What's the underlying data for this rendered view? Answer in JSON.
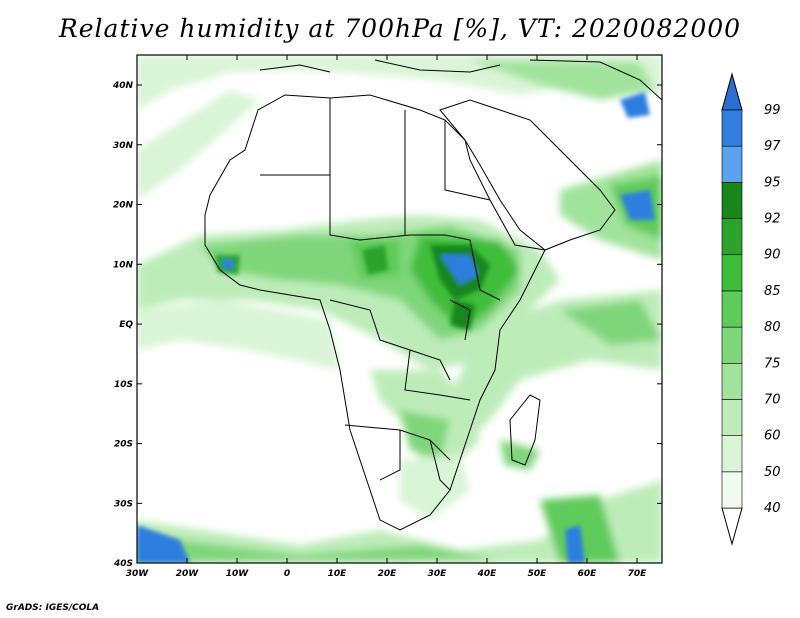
{
  "title": "Relative humidity at 700hPa [%], VT: 2020082000",
  "credit": "GrADS: IGES/COLA",
  "map": {
    "region": "Africa",
    "lon_range": [
      -30,
      75
    ],
    "lat_range": [
      -40,
      45
    ],
    "lon_ticks": [
      "30W",
      "20W",
      "10W",
      "0",
      "10E",
      "20E",
      "30E",
      "40E",
      "50E",
      "60E",
      "70E"
    ],
    "lat_ticks": [
      "40N",
      "30N",
      "20N",
      "10N",
      "EQ",
      "10S",
      "20S",
      "30S",
      "40S"
    ]
  },
  "colorbar": {
    "levels": [
      "40",
      "50",
      "60",
      "70",
      "75",
      "80",
      "85",
      "90",
      "92",
      "95",
      "97",
      "99"
    ],
    "colors": [
      "#f2fbf2",
      "#d9f4d6",
      "#bdecb9",
      "#a1e39c",
      "#7fd67a",
      "#5fcb5a",
      "#3fbd3a",
      "#2ba32a",
      "#17871b",
      "#5aa2ee",
      "#2f7ee0",
      "#1b5fc8"
    ],
    "under_color": "#ffffff",
    "over_color": "#2a6fd0"
  }
}
